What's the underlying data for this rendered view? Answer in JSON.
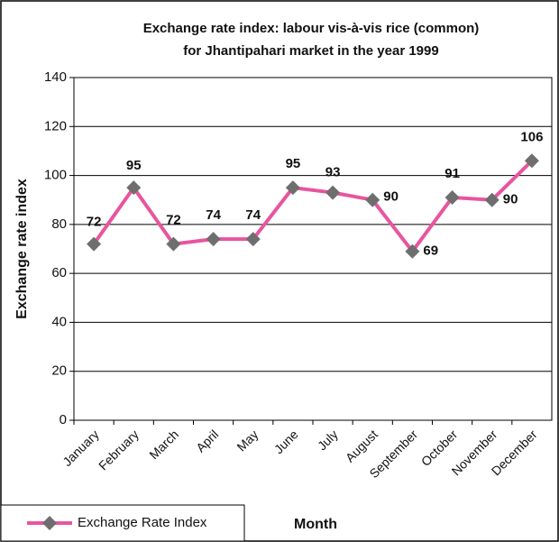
{
  "chart_data": {
    "type": "line",
    "title": [
      "Exchange rate index: labour vis-à-vis rice (common)",
      "for Jhantipahari market in the year 1999"
    ],
    "x_label": "Month",
    "y_label": "Exchange rate index",
    "categories": [
      "January",
      "February",
      "March",
      "April",
      "May",
      "June",
      "July",
      "August",
      "September",
      "October",
      "November",
      "December"
    ],
    "series": [
      {
        "name": "Exchange Rate Index",
        "color": "#e8559f",
        "marker_color": "#6e6e6e",
        "values": [
          72,
          95,
          72,
          74,
          74,
          95,
          93,
          90,
          69,
          91,
          90,
          106
        ]
      }
    ],
    "ylim": [
      0,
      140
    ],
    "yticks": [
      0,
      20,
      40,
      60,
      80,
      100,
      120,
      140
    ],
    "grid": true,
    "legend": "bottom-left"
  }
}
